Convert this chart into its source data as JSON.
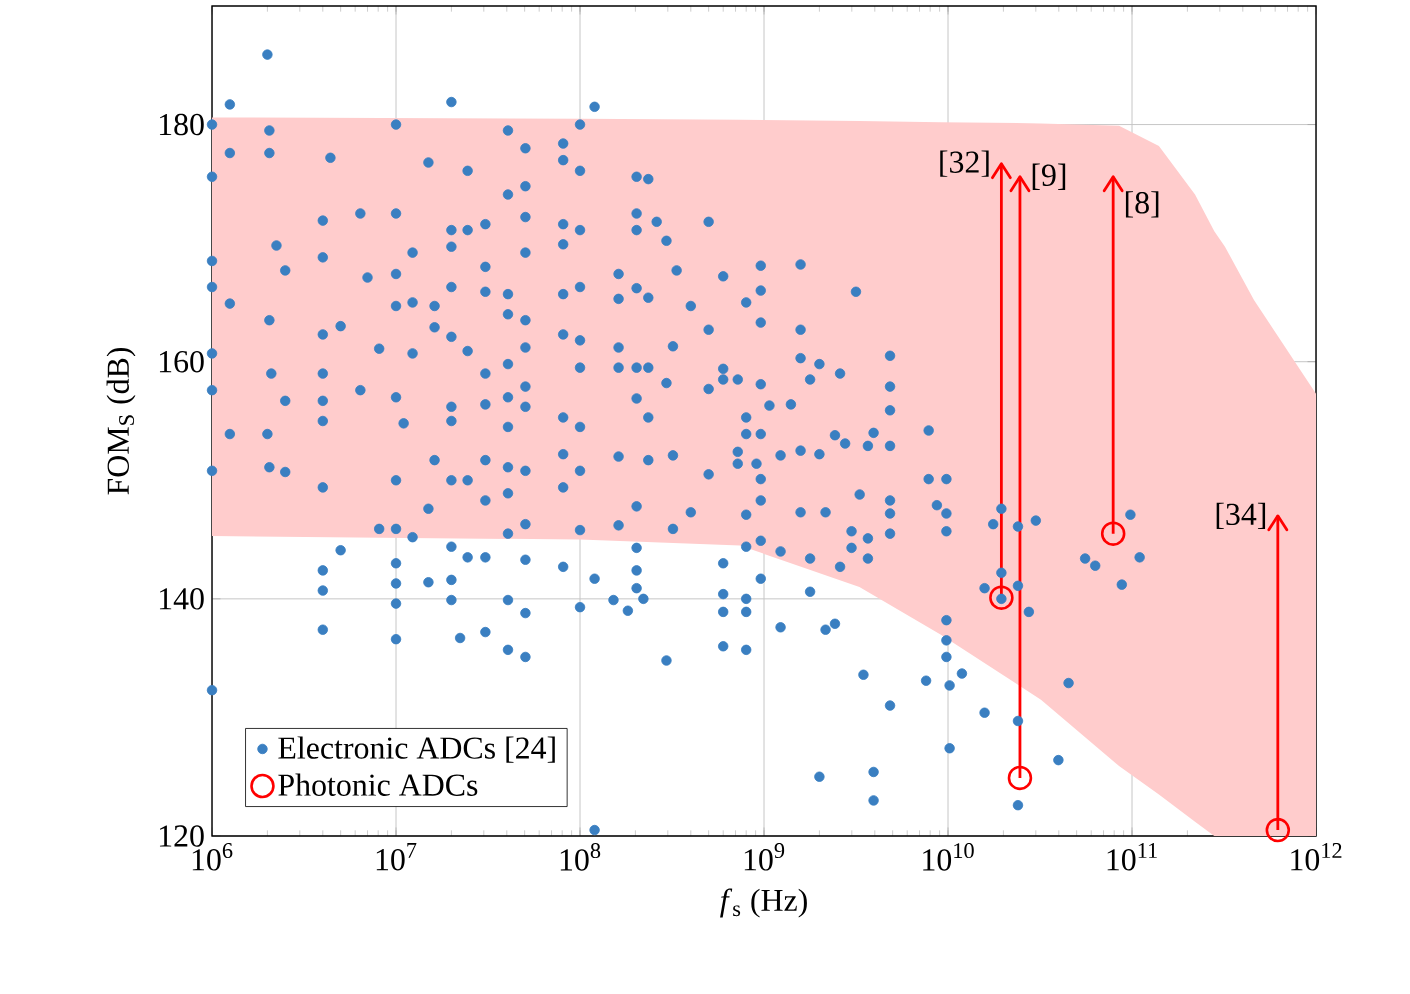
{
  "chart_data": {
    "type": "scatter",
    "xlabel": "*f*$_{s}$ (Hz)",
    "ylabel": "FOM$_{S}$ (dB)",
    "log": "x",
    "grid": true,
    "legend": "bottom left",
    "xlim": [
      1000000,
      1000000000000
    ],
    "ylim": [
      120,
      190
    ],
    "xticks": [
      {
        "value": 1000000,
        "label": "10$^{6}$"
      },
      {
        "value": 10000000,
        "label": "10$^{7}$"
      },
      {
        "value": 100000000,
        "label": "10$^{8}$"
      },
      {
        "value": 1000000000,
        "label": "10$^{9}$"
      },
      {
        "value": 10000000000,
        "label": "10$^{10}$"
      },
      {
        "value": 100000000000,
        "label": "10$^{11}$"
      },
      {
        "value": 1000000000000,
        "label": "10$^{12}$"
      }
    ],
    "yticks": [
      120,
      140,
      160,
      180
    ],
    "series": [
      {
        "type": "area",
        "color": "#ffcccc",
        "x": [
          1000000.0,
          100000000.0,
          740000000.0,
          3300000000.0,
          9100000000.0,
          32000000000.0,
          85000000000.0,
          140000000000.0,
          220000000000.0,
          280000000000.0,
          320000000000.0,
          460000000000.0,
          1000000000000.0
        ],
        "values": [
          null,
          null,
          null,
          null,
          null,
          null,
          null,
          null,
          null,
          null,
          null,
          null,
          null
        ],
        "upper": [
          180.6,
          180.5,
          180.4,
          180.3,
          180.2,
          180.1,
          179.9,
          178.2,
          174.1,
          171,
          169.7,
          165.2,
          157.3
        ],
        "lower": [
          145.3,
          145,
          144.5,
          141,
          137,
          131.5,
          125.9,
          123.5,
          121.2,
          120,
          120,
          120,
          120
        ]
      },
      {
        "name": "Electronic ADCs [24]",
        "color": "#3a7fc1",
        "x": [
          2000000.0,
          1250000.0,
          1000000.0,
          1000000.0,
          1250000.0,
          2050000.0,
          2050000.0,
          4400000.0,
          1000000.0,
          1000000.0,
          1250000.0,
          1000000.0,
          1000000.0,
          1000000.0,
          1000000.0,
          1250000.0,
          2050000.0,
          2240000.0,
          2500000.0,
          2100000.0,
          2500000.0,
          2000000.0,
          2050000.0,
          2500000.0,
          4000000.0,
          4000000.0,
          4000000.0,
          4000000.0,
          4000000.0,
          4000000.0,
          4000000.0,
          4000000.0,
          4000000.0,
          4000000.0,
          5000000.0,
          5000000.0,
          6400000.0,
          7000000.0,
          6400000.0,
          8100000.0,
          10000000.0,
          10000000.0,
          10000000.0,
          10000000.0,
          10000000.0,
          10000000.0,
          8100000.0,
          10000000.0,
          10000000.0,
          10000000.0,
          10000000.0,
          10000000.0,
          12300000.0,
          12300000.0,
          12300000.0,
          11000000.0,
          12300000.0,
          15000000.0,
          16200000.0,
          16200000.0,
          16200000.0,
          15000000.0,
          15000000.0,
          20000000.0,
          20000000.0,
          20000000.0,
          20000000.0,
          20000000.0,
          20000000.0,
          20000000.0,
          20000000.0,
          20000000.0,
          20000000.0,
          20000000.0,
          22300000.0,
          24500000.0,
          24500000.0,
          24500000.0,
          24500000.0,
          24500000.0,
          30600000.0,
          30600000.0,
          30600000.0,
          30600000.0,
          30600000.0,
          30600000.0,
          30600000.0,
          30600000.0,
          30600000.0,
          40600000.0,
          40600000.0,
          40600000.0,
          40600000.0,
          40600000.0,
          40600000.0,
          40600000.0,
          40600000.0,
          40600000.0,
          40600000.0,
          40600000.0,
          40600000.0,
          50500000.0,
          50500000.0,
          50500000.0,
          50500000.0,
          50500000.0,
          50500000.0,
          50500000.0,
          50500000.0,
          50500000.0,
          50500000.0,
          50500000.0,
          50500000.0,
          50500000.0,
          81000000.0,
          81000000.0,
          81000000.0,
          81000000.0,
          81000000.0,
          81000000.0,
          81000000.0,
          81000000.0,
          81000000.0,
          81000000.0,
          100000000.0,
          100000000.0,
          100000000.0,
          100000000.0,
          100000000.0,
          100000000.0,
          100000000.0,
          100000000.0,
          100000000.0,
          100000000.0,
          120000000.0,
          120000000.0,
          203000000.0,
          235000000.0,
          203000000.0,
          203000000.0,
          261000000.0,
          295000000.0,
          500000000.0,
          335000000.0,
          162000000.0,
          162000000.0,
          203000000.0,
          235000000.0,
          400000000.0,
          600000000.0,
          960000000.0,
          1580000000.0,
          960000000.0,
          800000000.0,
          3160000000.0,
          500000000.0,
          960000000.0,
          1580000000.0,
          320000000.0,
          162000000.0,
          162000000.0,
          203000000.0,
          235000000.0,
          600000000.0,
          600000000.0,
          720000000.0,
          960000000.0,
          500000000.0,
          1580000000.0,
          2000000000.0,
          2590000000.0,
          4840000000.0,
          4840000000.0,
          203000000.0,
          295000000.0,
          1400000000.0,
          1780000000.0,
          800000000.0,
          1070000000.0,
          235000000.0,
          4840000000.0,
          800000000.0,
          960000000.0,
          2430000000.0,
          3940000000.0,
          3670000000.0,
          4840000000.0,
          7850000000.0,
          2760000000.0,
          1230000000.0,
          720000000.0,
          162000000.0,
          235000000.0,
          320000000.0,
          720000000.0,
          910000000.0,
          500000000.0,
          1580000000.0,
          2000000000.0,
          960000000.0,
          3310000000.0,
          960000000.0,
          4840000000.0,
          7850000000.0,
          9800000000.0,
          203000000.0,
          162000000.0,
          320000000.0,
          400000000.0,
          800000000.0,
          1580000000.0,
          2160000000.0,
          4840000000.0,
          9800000000.0,
          2990000000.0,
          3670000000.0,
          4840000000.0,
          9800000000.0,
          960000000.0,
          1230000000.0,
          800000000.0,
          1780000000.0,
          2590000000.0,
          2990000000.0,
          3670000000.0,
          203000000.0,
          203000000.0,
          600000000.0,
          960000000.0,
          1780000000.0,
          120000000.0,
          203000000.0,
          600000000.0,
          800000000.0,
          152000000.0,
          182000000.0,
          221000000.0,
          600000000.0,
          800000000.0,
          1230000000.0,
          2430000000.0,
          2160000000.0,
          9800000000.0,
          600000000.0,
          800000000.0,
          295000000.0,
          9800000000.0,
          3470000000.0,
          7600000000.0,
          11900000000.0,
          4840000000.0,
          10200000000.0,
          2000000000.0,
          3940000000.0,
          3940000000.0,
          8700000000.0,
          9800000000.0,
          10200000000.0,
          15800000000.0,
          24000000000.0,
          39800000000.0,
          45200000000.0,
          24000000000.0,
          17600000000.0,
          19500000000.0,
          24000000000.0,
          30000000000.0,
          19500000000.0,
          15800000000.0,
          19500000000.0,
          24000000000.0,
          27500000000.0,
          55600000000.0,
          63100000000.0,
          98000000000.0,
          110000000000.0,
          88000000000.0
        ],
        "values": [
          185.9,
          181.7,
          180.0,
          175.6,
          177.6,
          179.5,
          177.6,
          177.2,
          168.5,
          166.3,
          164.9,
          160.7,
          157.6,
          150.8,
          132.3,
          153.9,
          163.5,
          169.8,
          167.7,
          159.0,
          156.7,
          153.9,
          151.1,
          150.7,
          171.9,
          168.8,
          162.3,
          159.0,
          156.7,
          155.0,
          149.4,
          142.4,
          140.7,
          137.4,
          163.0,
          144.1,
          172.5,
          167.1,
          157.6,
          161.1,
          180.0,
          172.5,
          167.4,
          164.7,
          157.0,
          150.0,
          145.9,
          145.9,
          143.0,
          141.3,
          139.6,
          136.6,
          169.2,
          165.0,
          160.7,
          154.8,
          145.2,
          176.8,
          164.7,
          162.9,
          151.7,
          147.6,
          141.4,
          181.9,
          171.1,
          169.7,
          166.3,
          162.1,
          156.2,
          155.0,
          150.0,
          144.4,
          141.6,
          139.9,
          136.7,
          176.1,
          171.1,
          160.9,
          150.0,
          143.5,
          171.6,
          168.0,
          165.9,
          159.0,
          156.4,
          151.7,
          148.3,
          143.5,
          137.2,
          179.5,
          174.1,
          165.7,
          164.0,
          159.8,
          157.0,
          154.5,
          151.1,
          148.9,
          145.5,
          139.9,
          135.7,
          178.0,
          174.8,
          172.2,
          169.2,
          163.5,
          161.2,
          157.9,
          156.2,
          150.8,
          146.3,
          143.3,
          138.8,
          135.1,
          178.4,
          177.0,
          171.6,
          169.9,
          165.7,
          162.3,
          155.3,
          152.2,
          149.4,
          142.7,
          180.0,
          176.1,
          171.1,
          166.3,
          161.8,
          159.5,
          154.5,
          150.8,
          145.8,
          139.3,
          181.5,
          120.5,
          175.6,
          175.4,
          172.5,
          171.1,
          171.8,
          170.2,
          171.8,
          167.7,
          167.4,
          165.3,
          166.2,
          165.4,
          164.7,
          167.2,
          168.1,
          168.2,
          166.0,
          165.0,
          165.9,
          162.7,
          163.3,
          162.7,
          161.3,
          161.2,
          159.5,
          159.5,
          159.5,
          159.4,
          158.5,
          158.5,
          158.1,
          157.7,
          160.3,
          159.8,
          159.0,
          160.5,
          157.9,
          156.9,
          158.2,
          156.4,
          158.5,
          155.3,
          156.3,
          155.3,
          155.9,
          153.9,
          153.9,
          153.8,
          154.0,
          152.9,
          152.9,
          154.2,
          153.1,
          152.1,
          152.4,
          152.0,
          151.7,
          152.1,
          151.4,
          151.4,
          150.5,
          152.5,
          152.2,
          150.1,
          148.8,
          148.3,
          148.3,
          150.1,
          150.1,
          147.8,
          146.2,
          145.9,
          147.3,
          147.1,
          147.3,
          147.3,
          147.2,
          147.2,
          145.7,
          145.1,
          145.5,
          145.7,
          144.9,
          144.0,
          144.4,
          143.4,
          142.7,
          144.3,
          143.4,
          144.3,
          142.4,
          143.0,
          141.7,
          140.6,
          141.7,
          140.9,
          140.4,
          140.0,
          139.9,
          139.0,
          140.0,
          138.9,
          138.9,
          137.6,
          137.9,
          137.4,
          138.2,
          136.0,
          135.7,
          134.8,
          136.5,
          133.6,
          133.1,
          133.7,
          131.0,
          127.4,
          125.0,
          125.4,
          123.0,
          147.9,
          135.1,
          132.7,
          130.4,
          129.7,
          126.4,
          132.9,
          122.6,
          146.3,
          147.6,
          146.1,
          146.6,
          142.2,
          140.9,
          140.0,
          141.1,
          138.9,
          143.4,
          142.8,
          147.1,
          143.5,
          141.2
        ]
      },
      {
        "name": "Photonic ADCs",
        "color": "#ff0000",
        "x": [
          19500000000.0,
          24600000000.0,
          79000000000.0,
          620000000000.0
        ],
        "values": [
          140.1,
          124.9,
          145.5,
          120.5
        ],
        "errors": [
          [
            140.1,
            176.7
          ],
          [
            124.9,
            175.6
          ],
          [
            145.5,
            175.6
          ],
          [
            120.5,
            147
          ]
        ]
      }
    ],
    "annotations": [
      "[32]",
      "[9]",
      "[8]",
      "[34]"
    ]
  }
}
